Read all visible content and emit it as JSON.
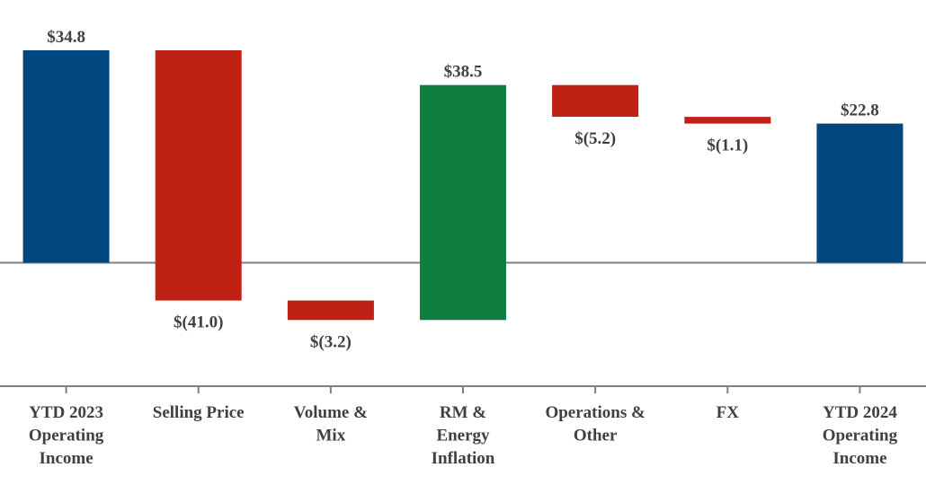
{
  "chart_data": {
    "type": "waterfall",
    "title": "",
    "xlabel": "",
    "ylabel": "",
    "ylim": [
      -22,
      40
    ],
    "grid": false,
    "legend": "none",
    "colors": {
      "total": "#00467f",
      "decrease": "#bf2115",
      "increase": "#0e7f40",
      "axis": "#7f7f7f",
      "text": "#404040"
    },
    "steps": [
      {
        "category_lines": [
          "YTD 2023",
          "Operating",
          "Income"
        ],
        "value": 34.8,
        "kind": "total",
        "label": "$34.8"
      },
      {
        "category_lines": [
          "Selling Price"
        ],
        "value": -41.0,
        "kind": "decrease",
        "label": "$(41.0)"
      },
      {
        "category_lines": [
          "Volume &",
          "Mix"
        ],
        "value": -3.2,
        "kind": "decrease",
        "label": "$(3.2)"
      },
      {
        "category_lines": [
          "RM &",
          "Energy",
          "Inflation"
        ],
        "value": 38.5,
        "kind": "increase",
        "label": "$38.5"
      },
      {
        "category_lines": [
          "Operations &",
          "Other"
        ],
        "value": -5.2,
        "kind": "decrease",
        "label": "$(5.2)"
      },
      {
        "category_lines": [
          "FX"
        ],
        "value": -1.1,
        "kind": "decrease",
        "label": "$(1.1)"
      },
      {
        "category_lines": [
          "YTD 2024",
          "Operating",
          "Income"
        ],
        "value": 22.8,
        "kind": "total",
        "label": "$22.8"
      }
    ]
  }
}
